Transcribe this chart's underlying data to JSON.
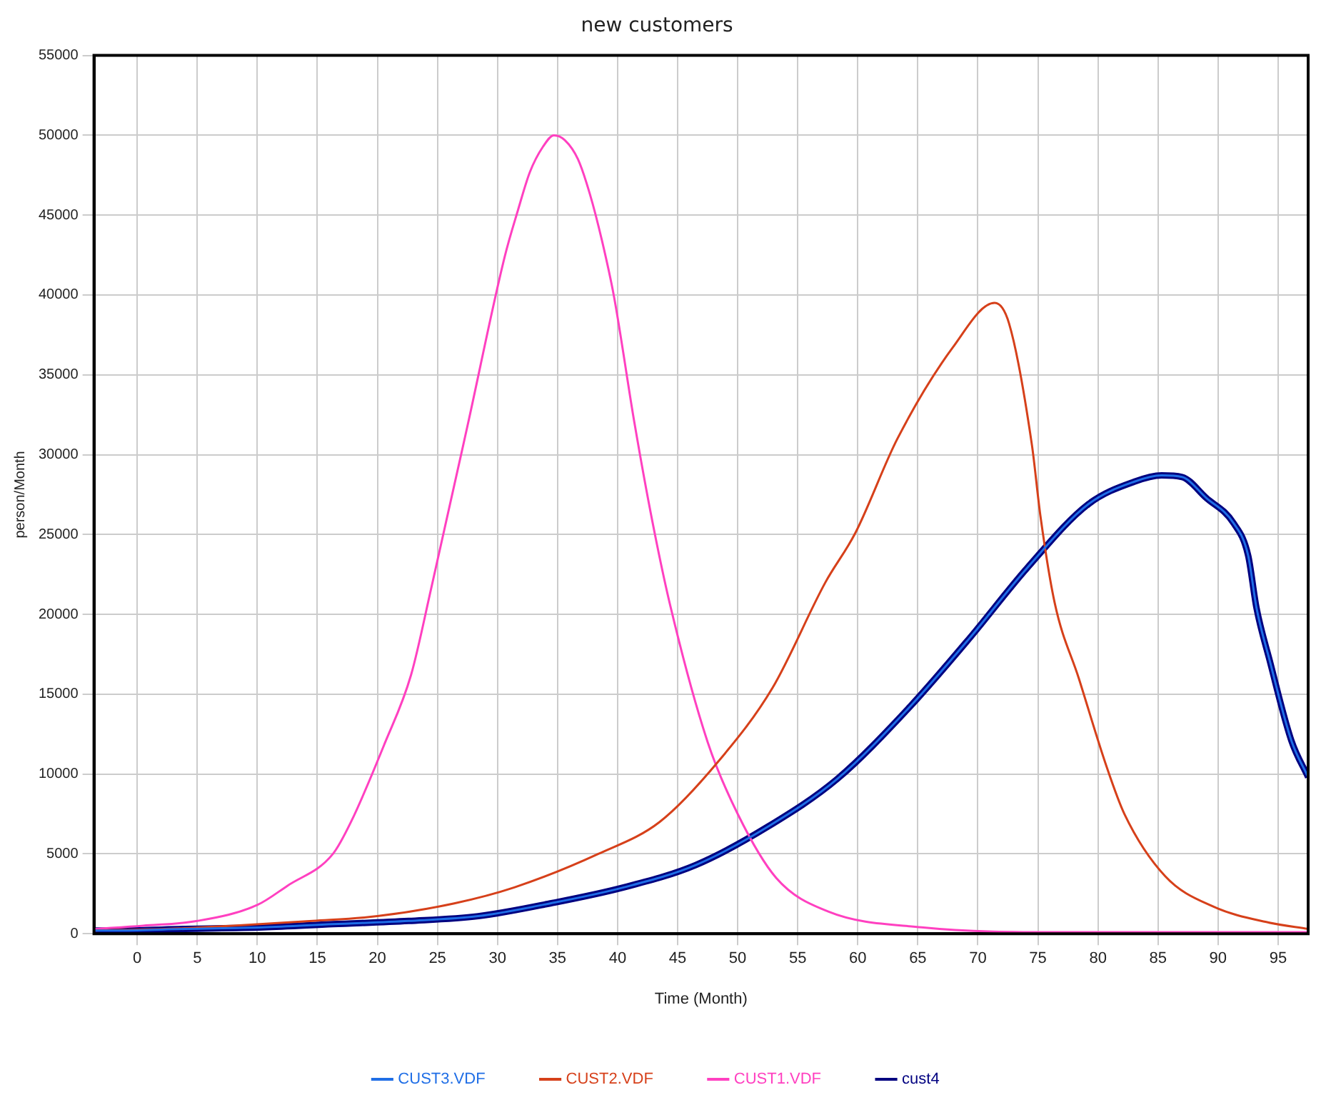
{
  "chart_data": {
    "type": "line",
    "title": "new customers",
    "xlabel": "Time (Month)",
    "ylabel": "person/Month",
    "xlim": [
      -3.6,
      97.5
    ],
    "xticks": [
      0,
      5,
      10,
      15,
      20,
      25,
      30,
      35,
      40,
      45,
      50,
      55,
      60,
      65,
      70,
      75,
      80,
      85,
      90,
      95
    ],
    "ylim": [
      0,
      55000
    ],
    "yticks": [
      0,
      5000,
      10000,
      15000,
      20000,
      25000,
      30000,
      35000,
      40000,
      45000,
      50000,
      55000
    ],
    "grid": true,
    "legend": "bottom",
    "series": [
      {
        "name": "CUST3.VDF",
        "color": "#1f6ee6",
        "x": [
          -3.5,
          -1.5,
          4,
          10.5,
          16.3,
          22.6,
          28.4,
          34.4,
          40.5,
          46.5,
          52.5,
          58.3,
          64.2,
          69.3,
          74.1,
          79.2,
          83,
          85.3,
          87,
          89,
          91.3,
          92.5,
          93.2,
          94.3,
          96.1,
          97.5
        ],
        "values": [
          200,
          200,
          300,
          400,
          600,
          800,
          1100,
          1900,
          2900,
          4300,
          6700,
          9700,
          14100,
          18500,
          22900,
          26900,
          28300,
          28700,
          28600,
          27300,
          25700,
          23700,
          20400,
          17100,
          12100,
          9800
        ]
      },
      {
        "name": "CUST2.VDF",
        "color": "#d6401a",
        "x": [
          -3.5,
          2.4,
          8,
          14.6,
          20,
          26.4,
          31.4,
          38.4,
          43.5,
          48.4,
          52.9,
          57.3,
          59.8,
          63.3,
          67.9,
          71.4,
          72.6,
          74.5,
          75.2,
          76.4,
          78.4,
          80.7,
          82.2,
          85.6,
          89.6,
          94.2,
          97.5
        ],
        "values": [
          200,
          300,
          500,
          800,
          1100,
          1900,
          2900,
          5000,
          7000,
          10800,
          15400,
          22000,
          25100,
          31000,
          36700,
          39500,
          38200,
          30600,
          26200,
          20700,
          16000,
          10500,
          7500,
          3600,
          1700,
          700,
          300
        ]
      },
      {
        "name": "CUST1.VDF",
        "color": "#ff40c0",
        "x": [
          -3.5,
          0.5,
          5,
          10,
          12.5,
          16.3,
          17.8,
          20.6,
          22.8,
          24.5,
          27.5,
          30.6,
          31.7,
          32.7,
          33.8,
          34.7,
          35.6,
          36.7,
          37.7,
          38.7,
          39.7,
          41.4,
          42.9,
          44.4,
          47.5,
          50,
          53.2,
          57.5,
          65.3,
          77.2,
          89,
          97.5
        ],
        "values": [
          300,
          500,
          800,
          1800,
          3000,
          5000,
          7000,
          11900,
          16200,
          21700,
          31800,
          42400,
          45300,
          47700,
          49300,
          50000,
          49700,
          48500,
          46300,
          43400,
          39900,
          32000,
          25800,
          20500,
          12000,
          7500,
          3500,
          1400,
          400,
          100,
          100,
          100
        ]
      },
      {
        "name": "cust4",
        "color": "#000080",
        "x": [
          -3.5,
          -1.5,
          4,
          10.5,
          16.3,
          22.6,
          28.4,
          34.4,
          40.5,
          46.5,
          52.5,
          58.3,
          64.2,
          69.3,
          74.1,
          79.2,
          83,
          85.3,
          87,
          89,
          91.3,
          92.5,
          93.2,
          94.3,
          96.1,
          97.5
        ],
        "values": [
          200,
          200,
          300,
          400,
          600,
          800,
          1100,
          1900,
          2900,
          4300,
          6700,
          9700,
          14100,
          18500,
          22900,
          26900,
          28300,
          28700,
          28600,
          27300,
          25700,
          23700,
          20400,
          17100,
          12100,
          9800
        ]
      }
    ]
  }
}
